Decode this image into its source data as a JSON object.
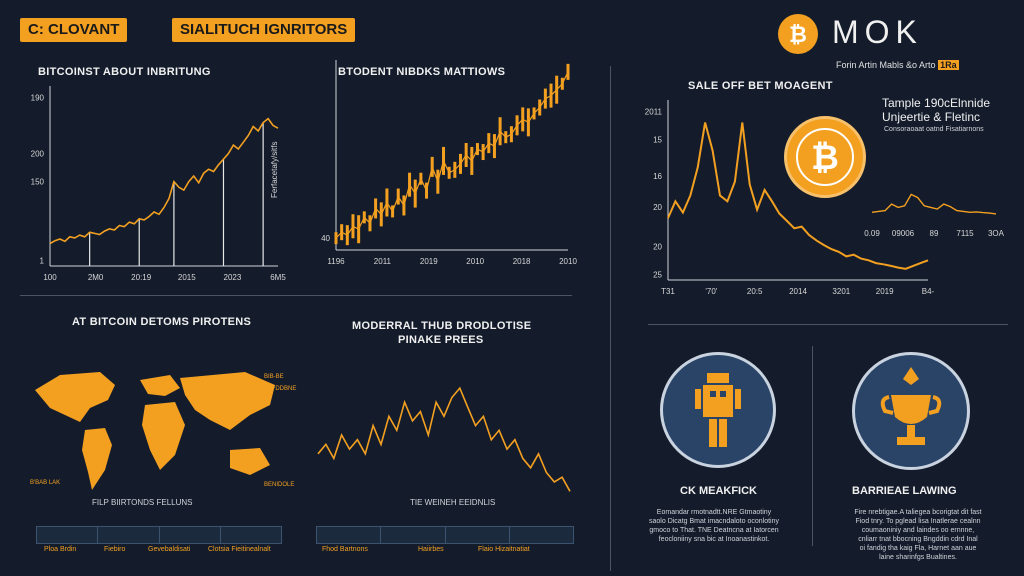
{
  "header": {
    "tag1": "C: CLOVANT",
    "tag2": "SIALITUCH IGNRITORS",
    "brand": "MO",
    "brand_suffix": "K",
    "subtitle": "Forin Artin Mabls &o Arto",
    "subtitle_badge": "1Ra"
  },
  "colors": {
    "accent": "#f3a021",
    "background": "#141c2b",
    "panel_circle": "#2a4468"
  },
  "charts": {
    "c1": {
      "title": "BITCOINST ABOUT INBRITUNG",
      "y_ticks": [
        {
          "v": 300,
          "t": "190"
        },
        {
          "v": 200,
          "t": "200"
        },
        {
          "v": 150,
          "t": "150"
        },
        {
          "v": 10,
          "t": "1"
        }
      ],
      "x_ticks": [
        "100",
        "2M0",
        "20:19",
        "2015",
        "2023",
        "6M5"
      ],
      "chart_data": {
        "type": "line",
        "ylim": [
          0,
          320
        ],
        "series": [
          {
            "values": [
              40,
              45,
              48,
              44,
              52,
              50,
              55,
              52,
              60,
              58,
              56,
              62,
              66,
              64,
              72,
              70,
              78,
              75,
              84,
              82,
              88,
              96,
              92,
              104,
              120,
              150,
              140,
              135,
              150,
              160,
              148,
              165,
              172,
              168,
              180,
              190,
              200,
              215,
              208,
              220,
              232,
              248,
              240,
              255,
              262,
              250,
              245
            ]
          }
        ]
      }
    },
    "c2": {
      "title": "BTODENT NIBDKS MATTIOWS",
      "ylabel": "Ferfacetafy/sitfs",
      "y_ticks": [
        {
          "v": 20,
          "t": "40"
        }
      ],
      "x_ticks": [
        "1196",
        "2011",
        "2019",
        "2010",
        "2018",
        "2010"
      ],
      "chart_data": {
        "type": "line",
        "ylim": [
          0,
          320
        ],
        "series": [
          {
            "values": [
              20,
              30,
              25,
              40,
              35,
              55,
              45,
              70,
              60,
              80,
              65,
              90,
              75,
              110,
              95,
              120,
              100,
              140,
              115,
              150,
              130,
              135,
              145,
              160,
              150,
              170,
              165,
              180,
              175,
              200,
              190,
              195,
              210,
              220,
              215,
              230,
              240,
              255,
              260,
              270,
              280,
              300
            ]
          }
        ]
      }
    },
    "c3": {
      "title": "SALE OFF BET MOAGENT",
      "y_ticks": [
        {
          "v": 300,
          "t": "2011"
        },
        {
          "v": 250,
          "t": "15"
        },
        {
          "v": 185,
          "t": "16"
        },
        {
          "v": 130,
          "t": "20"
        },
        {
          "v": 60,
          "t": "20"
        },
        {
          "v": 10,
          "t": "25"
        }
      ],
      "x_ticks": [
        "T31",
        "'70'",
        "20:5",
        "2014",
        "3201",
        "2019",
        "B4-"
      ],
      "chart_data": {
        "type": "line",
        "ylim": [
          0,
          320
        ],
        "series": [
          {
            "values": [
              110,
              140,
              120,
              150,
              200,
              280,
              230,
              150,
              140,
              175,
              280,
              170,
              125,
              160,
              140,
              118,
              105,
              92,
              95,
              80,
              70,
              62,
              55,
              50,
              42,
              45,
              38,
              35,
              30,
              28,
              25,
              22,
              20,
              25,
              30,
              35
            ]
          }
        ]
      }
    },
    "c4": {
      "title": "MODERRAL THUB DRODLOTISE",
      "subtitle": "PINAKE PREES",
      "chart_data": {
        "type": "line",
        "ylim": [
          0,
          320
        ],
        "series": [
          {
            "values": [
              120,
              140,
              110,
              160,
              130,
              150,
              120,
              180,
              140,
              200,
              170,
              230,
              190,
              210,
              160,
              230,
              200,
              240,
              260,
              220,
              180,
              200,
              150,
              170,
              130,
              150,
              110,
              90,
              120,
              80,
              60,
              70,
              40
            ]
          }
        ]
      }
    },
    "inset": {
      "x_ticks": [
        "0.09",
        "09006",
        "89",
        "7115",
        "3OA"
      ],
      "chart_data": {
        "type": "line",
        "ylim": [
          0,
          320
        ],
        "series": [
          {
            "values": [
              60,
              65,
              70,
              110,
              90,
              100,
              170,
              150,
              100,
              90,
              80,
              110,
              95,
              70,
              65,
              60,
              62,
              58,
              55,
              50
            ]
          }
        ]
      }
    }
  },
  "panel_right": {
    "line1": "Tample 190cElnnide",
    "line2": "Unjeertie & Fletinc",
    "line3": "Consoraoaat oatnd Fisatiarnons"
  },
  "map": {
    "title": "AT BITCOIN DETOMS PIROTENS",
    "caption": "FILP BIIRTONDS FELLUNS",
    "labels": [
      "B'BAB LAK",
      "BIB-BE",
      "FEFDDBNE",
      "BENIDOLE"
    ]
  },
  "volatility": {
    "caption": "TIE WEINEH EEIDNLIS",
    "labels": [
      "Fhod Bartnons",
      "Haiirbes",
      "Flaio Hizaitnatiat"
    ]
  },
  "features": {
    "left": {
      "icon": "robot-icon",
      "title": "CK MEAKFICK",
      "text": "Eomandar rmotnadtt.NRE Gtmaotiny\nsaolo Dicatg Bmat imacndaloto oconlotiny\ngmoco to That. TNE Deatncna at Iatorcen\nfeocloniiny sna bic at Inoanastinkot."
    },
    "right": {
      "icon": "trophy-icon",
      "title": "BARRIEAE LAWING",
      "text": "Fire nrebtigae.A taliegea bcorigtat dit fast\nFiod tnry. To pglead lisa Inatlerae cealnn\ncoumaoniniy and laindes oo ernnne,\ncnliarr tnat bbocning Bngddin cdrd Inal\noi fandig tha kaig Fla, Harnet aan aue\nlaine sharinfgs Bualtines."
    }
  }
}
